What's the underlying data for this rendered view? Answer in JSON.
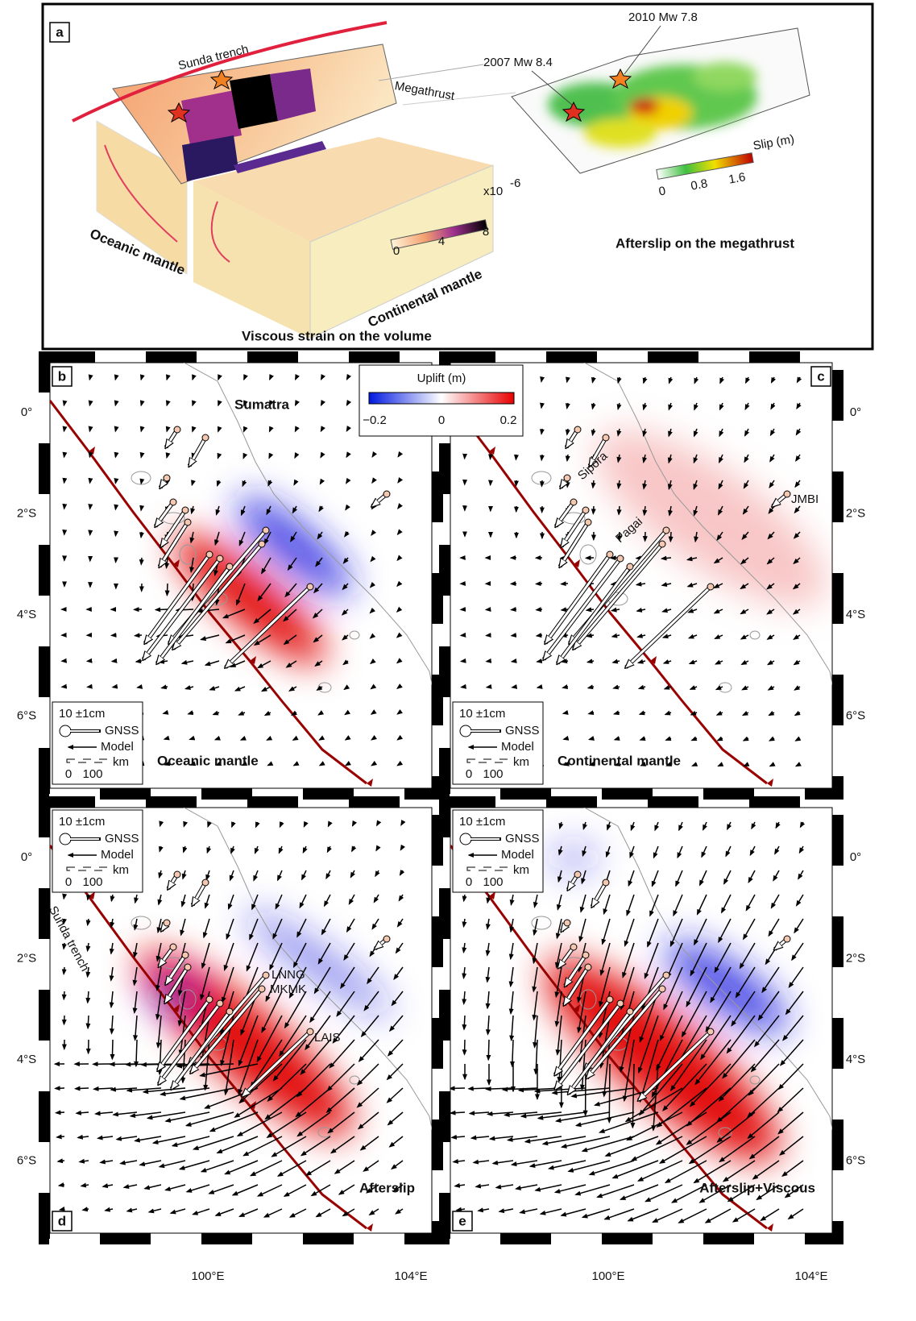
{
  "panel_a": {
    "label": "a",
    "trench": "Sunda trench",
    "megathrust": "Megathrust",
    "quake_2007": "2007 Mw 8.4",
    "quake_2010": "2010 Mw 7.8",
    "slip_title": "Slip (m)",
    "slip_ticks": [
      "0",
      "0.8",
      "1.6"
    ],
    "strain_unit": "x10",
    "strain_exponent": "-6",
    "strain_ticks": [
      "0",
      "4",
      "8"
    ],
    "oceanic": "Oceanic mantle",
    "continental": "Continental mantle",
    "volume_caption": "Viscous strain on the volume",
    "afterslip_caption": "Afterslip on the megathrust"
  },
  "uplift_colorbar": {
    "title": "Uplift (m)",
    "ticks": [
      "−0.2",
      "0",
      "0.2"
    ]
  },
  "lat_labels": [
    "0°",
    "2°S",
    "4°S",
    "6°S"
  ],
  "lon_labels": [
    "100°E",
    "104°E"
  ],
  "legend": {
    "scale": "10 ±1cm",
    "gnss": "GNSS",
    "model": "Model",
    "unit": "km",
    "distances": [
      "0",
      "100"
    ]
  },
  "panels": [
    {
      "label": "b",
      "title": "Oceanic mantle",
      "place": "Sumatra"
    },
    {
      "label": "c",
      "title": "Continental mantle",
      "islands": [
        "Sipora",
        "Pagai"
      ],
      "station": "JMBI"
    },
    {
      "label": "d",
      "title": "Afterslip",
      "stations": [
        "LNNG",
        "MKMK",
        "LAIS"
      ],
      "trench": "Sunda trench"
    },
    {
      "label": "e",
      "title": "Afterslip+Viscous"
    }
  ]
}
